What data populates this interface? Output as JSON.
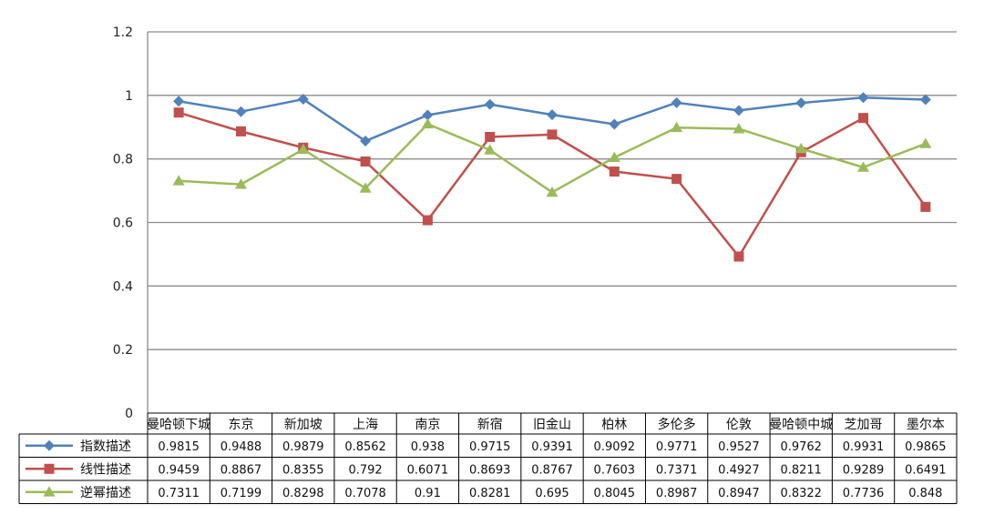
{
  "chart_data": {
    "type": "line",
    "categories": [
      "曼哈顿下城",
      "东京",
      "新加坡",
      "上海",
      "南京",
      "新宿",
      "旧金山",
      "柏林",
      "多伦多",
      "伦敦",
      "曼哈顿中城",
      "芝加哥",
      "墨尔本"
    ],
    "series": [
      {
        "name": "指数描述",
        "color": "#4f81bd",
        "marker": "diamond",
        "values": [
          0.9815,
          0.9488,
          0.9879,
          0.8562,
          0.938,
          0.9715,
          0.9391,
          0.9092,
          0.9771,
          0.9527,
          0.9762,
          0.9931,
          0.9865
        ],
        "labels": [
          "0.9815",
          "0.9488",
          "0.9879",
          "0.8562",
          "0.938",
          "0.9715",
          "0.9391",
          "0.9092",
          "0.9771",
          "0.9527",
          "0.9762",
          "0.9931",
          "0.9865"
        ]
      },
      {
        "name": "线性描述",
        "color": "#c0504d",
        "marker": "square",
        "values": [
          0.9459,
          0.8867,
          0.8355,
          0.792,
          0.6071,
          0.8693,
          0.8767,
          0.7603,
          0.7371,
          0.4927,
          0.8211,
          0.9289,
          0.6491
        ],
        "labels": [
          "0.9459",
          "0.8867",
          "0.8355",
          "0.792",
          "0.6071",
          "0.8693",
          "0.8767",
          "0.7603",
          "0.7371",
          "0.4927",
          "0.8211",
          "0.9289",
          "0.6491"
        ]
      },
      {
        "name": "逆幂描述",
        "color": "#9bbb59",
        "marker": "triangle",
        "values": [
          0.7311,
          0.7199,
          0.8298,
          0.7078,
          0.91,
          0.8281,
          0.695,
          0.8045,
          0.8987,
          0.8947,
          0.8322,
          0.7736,
          0.848
        ],
        "labels": [
          "0.7311",
          "0.7199",
          "0.8298",
          "0.7078",
          "0.91",
          "0.8281",
          "0.695",
          "0.8045",
          "0.8987",
          "0.8947",
          "0.8322",
          "0.7736",
          "0.848"
        ]
      }
    ],
    "ylim": [
      0,
      1.2
    ],
    "yticks": [
      "0",
      "0.2",
      "0.4",
      "0.6",
      "0.8",
      "1",
      "1.2"
    ],
    "grid": true,
    "legend": "data-table"
  }
}
